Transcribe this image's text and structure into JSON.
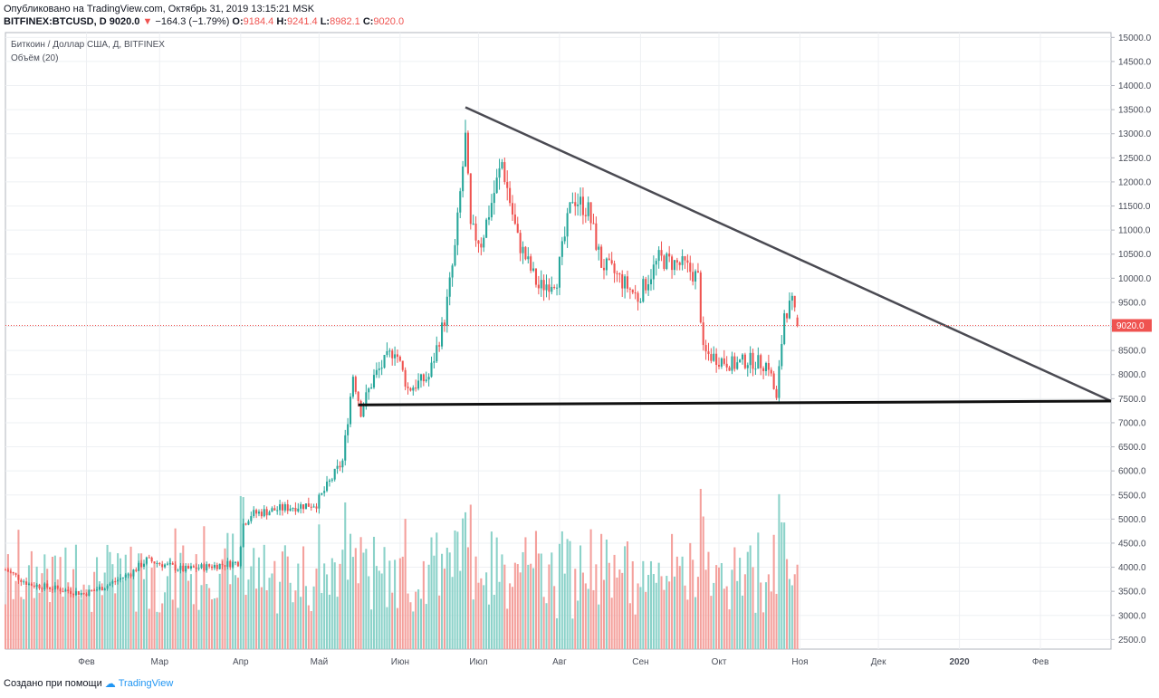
{
  "header": {
    "published": "Опубликовано на TradingView.com, Октябрь 31, 2019 13:15:21 MSK",
    "symbol": "BITFINEX:BTCUSD, D",
    "last": "9020.0",
    "change": "−164.3 (−1.79%)",
    "o_label": "O:",
    "o_val": "9184.4",
    "h_label": "H:",
    "h_val": "9241.4",
    "l_label": "L:",
    "l_val": "8982.1",
    "c_label": "C:",
    "c_val": "9020.0"
  },
  "legend": {
    "title": "Биткоин / Доллар США, Д, BITFINEX",
    "volume": "Объём (20)"
  },
  "footer": {
    "created": "Создано при помощи",
    "brand": "TradingView"
  },
  "colors": {
    "up": "#26a69a",
    "down": "#ef5350",
    "vol_up": "#8bd2c9",
    "vol_down": "#f4a09c",
    "trend": "#4a4a52",
    "support": "#111111",
    "price_line": "#ef5350"
  },
  "chart_data": {
    "type": "candlestick",
    "title": "Биткоин / Доллар США, Д, BITFINEX",
    "ylim": [
      2300,
      15100
    ],
    "y_ticks": [
      2500,
      3000,
      3500,
      4000,
      4500,
      5000,
      5500,
      6000,
      6500,
      7000,
      7500,
      8000,
      8500,
      9000,
      9500,
      10000,
      10500,
      11000,
      11500,
      12000,
      12500,
      13000,
      13500,
      14000,
      14500,
      15000
    ],
    "y_tick_labels": [
      "2500.0",
      "3000.0",
      "3500.0",
      "4000.0",
      "4500.0",
      "5000.0",
      "5500.0",
      "6000.0",
      "6500.0",
      "7000.0",
      "7500.0",
      "8000.0",
      "8500.0",
      "9000.0",
      "9500.0",
      "10000.0",
      "10500.0",
      "11000.0",
      "11500.0",
      "12000.0",
      "12500.0",
      "13000.0",
      "13500.0",
      "14000.0",
      "14500.0",
      "15000.0"
    ],
    "x_labels": [
      "Фев",
      "Мар",
      "Апр",
      "Май",
      "Июн",
      "Июл",
      "Авг",
      "Сен",
      "Окт",
      "Ноя",
      "Дек",
      "2020",
      "Фев"
    ],
    "x_label_dates": [
      "2019-02-01",
      "2019-03-01",
      "2019-04-01",
      "2019-05-01",
      "2019-06-01",
      "2019-07-01",
      "2019-08-01",
      "2019-09-01",
      "2019-10-01",
      "2019-11-01",
      "2019-12-01",
      "2020-01-01",
      "2020-02-01"
    ],
    "x_range": [
      "2019-01-01",
      "2020-02-28"
    ],
    "last_price": 9020.0,
    "last_price_label": "9020.0",
    "volume_indicator": "Объём (20)",
    "price_anchors": [
      [
        "2019-01-01",
        3950
      ],
      [
        "2019-01-10",
        3650
      ],
      [
        "2019-01-20",
        3560
      ],
      [
        "2019-01-31",
        3450
      ],
      [
        "2019-02-08",
        3600
      ],
      [
        "2019-02-18",
        3880
      ],
      [
        "2019-02-24",
        4150
      ],
      [
        "2019-03-10",
        3950
      ],
      [
        "2019-03-20",
        4020
      ],
      [
        "2019-03-31",
        4100
      ],
      [
        "2019-04-02",
        4900
      ],
      [
        "2019-04-05",
        5100
      ],
      [
        "2019-04-20",
        5250
      ],
      [
        "2019-04-30",
        5320
      ],
      [
        "2019-05-10",
        6200
      ],
      [
        "2019-05-14",
        8000
      ],
      [
        "2019-05-17",
        7250
      ],
      [
        "2019-05-22",
        7950
      ],
      [
        "2019-05-30",
        8550
      ],
      [
        "2019-06-04",
        7700
      ],
      [
        "2019-06-12",
        7950
      ],
      [
        "2019-06-18",
        9150
      ],
      [
        "2019-06-22",
        10600
      ],
      [
        "2019-06-26",
        12900
      ],
      [
        "2019-06-28",
        11000
      ],
      [
        "2019-07-02",
        10750
      ],
      [
        "2019-07-10",
        12400
      ],
      [
        "2019-07-16",
        10800
      ],
      [
        "2019-07-24",
        9800
      ],
      [
        "2019-07-31",
        10000
      ],
      [
        "2019-08-06",
        11700
      ],
      [
        "2019-08-12",
        11400
      ],
      [
        "2019-08-17",
        10300
      ],
      [
        "2019-08-22",
        10100
      ],
      [
        "2019-08-31",
        9600
      ],
      [
        "2019-09-08",
        10400
      ],
      [
        "2019-09-18",
        10250
      ],
      [
        "2019-09-23",
        10000
      ],
      [
        "2019-09-25",
        8450
      ],
      [
        "2019-10-07",
        8200
      ],
      [
        "2019-10-12",
        8300
      ],
      [
        "2019-10-20",
        8200
      ],
      [
        "2019-10-23",
        7450
      ],
      [
        "2019-10-26",
        9300
      ],
      [
        "2019-10-29",
        9450
      ],
      [
        "2019-10-31",
        9020
      ]
    ],
    "volume_ylim": [
      0,
      1000
    ],
    "trendlines": [
      {
        "name": "resistance",
        "from": [
          "2019-06-26",
          13550
        ],
        "to": [
          "2020-02-28",
          7450
        ]
      },
      {
        "name": "support",
        "from": [
          "2019-05-16",
          7370
        ],
        "to": [
          "2020-02-28",
          7450
        ]
      }
    ]
  }
}
